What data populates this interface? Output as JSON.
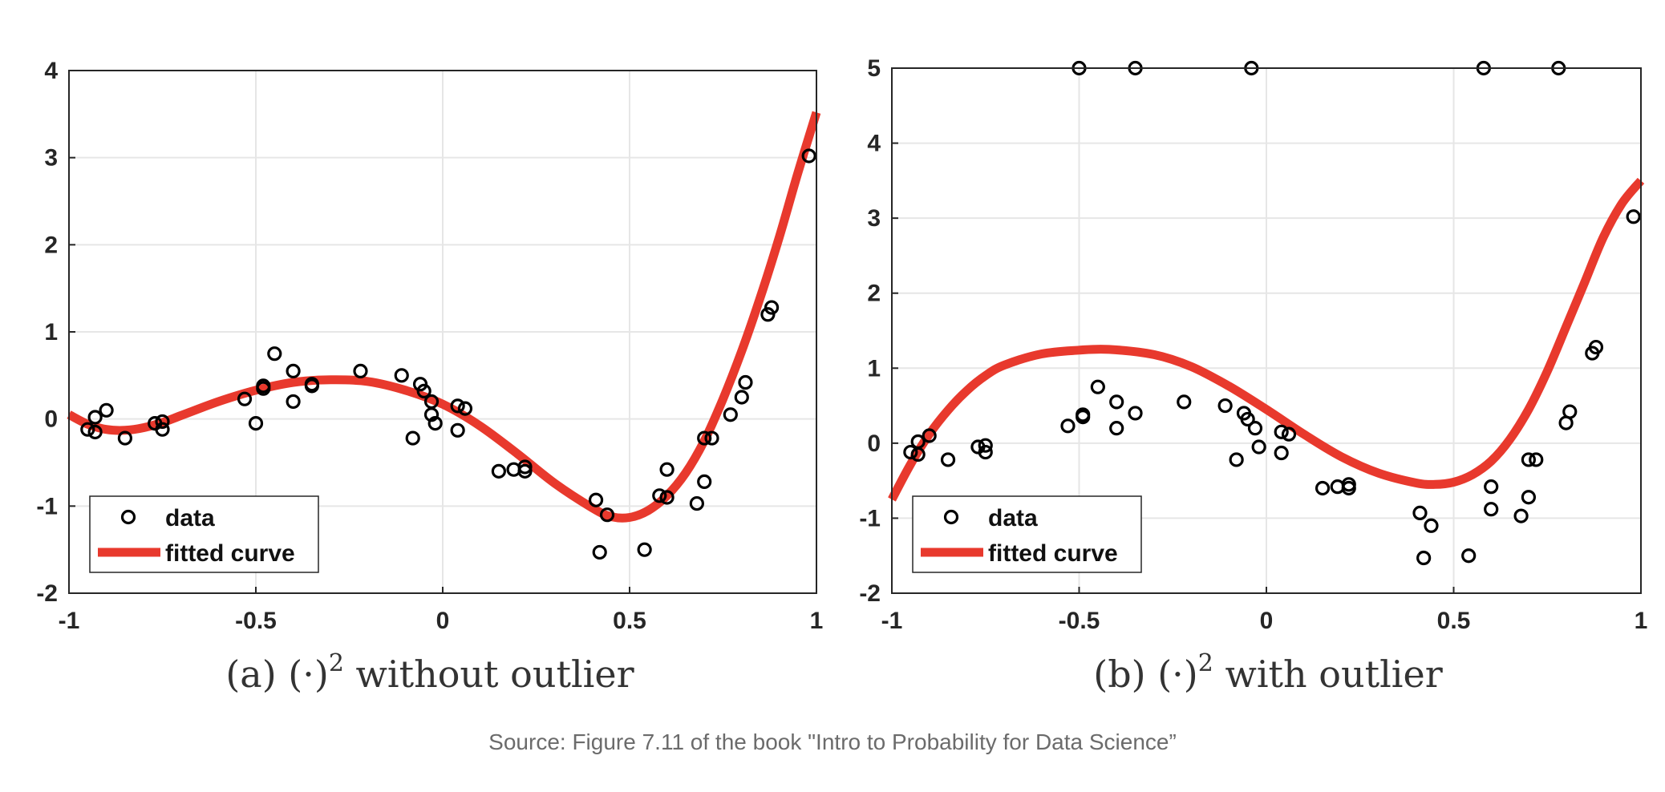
{
  "source_note": "Source: Figure 7.11 of the book \"Intro to Probability for Data Science”",
  "colors": {
    "curve": "#e8392d",
    "markers": "#000000",
    "grid": "#e6e6e6"
  },
  "chart_data": [
    {
      "type": "scatter",
      "caption": "(a) (·)² without outlier",
      "caption_prefix": "(a) (·)",
      "caption_sup": "2",
      "caption_suffix": " without outlier",
      "xlim": [
        -1,
        1
      ],
      "ylim": [
        -2,
        4
      ],
      "xticks": [
        -1,
        -0.5,
        0,
        0.5,
        1
      ],
      "xtick_labels": [
        "-1",
        "-0.5",
        "0",
        "0.5",
        "1"
      ],
      "yticks": [
        -2,
        -1,
        0,
        1,
        2,
        3,
        4
      ],
      "ytick_labels": [
        "-2",
        "-1",
        "0",
        "1",
        "2",
        "3",
        "4"
      ],
      "grid": true,
      "legend_position": "bottom-left",
      "legend": [
        "data",
        "fitted curve"
      ],
      "series": [
        {
          "name": "data",
          "kind": "points",
          "points": [
            [
              -0.95,
              -0.12
            ],
            [
              -0.93,
              -0.15
            ],
            [
              -0.93,
              0.02
            ],
            [
              -0.9,
              0.1
            ],
            [
              -0.85,
              -0.22
            ],
            [
              -0.77,
              -0.05
            ],
            [
              -0.75,
              -0.03
            ],
            [
              -0.75,
              -0.12
            ],
            [
              -0.53,
              0.23
            ],
            [
              -0.5,
              -0.05
            ],
            [
              -0.48,
              0.38
            ],
            [
              -0.48,
              0.35
            ],
            [
              -0.45,
              0.75
            ],
            [
              -0.4,
              0.55
            ],
            [
              -0.4,
              0.2
            ],
            [
              -0.35,
              0.4
            ],
            [
              -0.35,
              0.38
            ],
            [
              -0.22,
              0.55
            ],
            [
              -0.11,
              0.5
            ],
            [
              -0.08,
              -0.22
            ],
            [
              -0.06,
              0.4
            ],
            [
              -0.05,
              0.32
            ],
            [
              -0.03,
              0.2
            ],
            [
              -0.03,
              0.05
            ],
            [
              -0.02,
              -0.05
            ],
            [
              0.04,
              -0.13
            ],
            [
              0.04,
              0.15
            ],
            [
              0.06,
              0.12
            ],
            [
              0.15,
              -0.6
            ],
            [
              0.19,
              -0.58
            ],
            [
              0.22,
              -0.6
            ],
            [
              0.22,
              -0.55
            ],
            [
              0.41,
              -0.93
            ],
            [
              0.42,
              -1.53
            ],
            [
              0.44,
              -1.1
            ],
            [
              0.54,
              -1.5
            ],
            [
              0.58,
              -0.88
            ],
            [
              0.6,
              -0.9
            ],
            [
              0.6,
              -0.58
            ],
            [
              0.68,
              -0.97
            ],
            [
              0.7,
              -0.72
            ],
            [
              0.7,
              -0.22
            ],
            [
              0.72,
              -0.22
            ],
            [
              0.77,
              0.05
            ],
            [
              0.8,
              0.25
            ],
            [
              0.81,
              0.42
            ],
            [
              0.87,
              1.2
            ],
            [
              0.88,
              1.28
            ],
            [
              0.98,
              3.02
            ]
          ]
        },
        {
          "name": "fitted curve",
          "kind": "line",
          "points": [
            [
              -1.0,
              0.05
            ],
            [
              -0.95,
              -0.06
            ],
            [
              -0.9,
              -0.12
            ],
            [
              -0.85,
              -0.13
            ],
            [
              -0.8,
              -0.1
            ],
            [
              -0.75,
              -0.04
            ],
            [
              -0.7,
              0.04
            ],
            [
              -0.6,
              0.2
            ],
            [
              -0.5,
              0.33
            ],
            [
              -0.4,
              0.42
            ],
            [
              -0.3,
              0.45
            ],
            [
              -0.2,
              0.43
            ],
            [
              -0.1,
              0.33
            ],
            [
              0.0,
              0.17
            ],
            [
              0.1,
              -0.08
            ],
            [
              0.2,
              -0.4
            ],
            [
              0.3,
              -0.74
            ],
            [
              0.4,
              -1.02
            ],
            [
              0.45,
              -1.12
            ],
            [
              0.5,
              -1.13
            ],
            [
              0.55,
              -1.05
            ],
            [
              0.6,
              -0.88
            ],
            [
              0.65,
              -0.62
            ],
            [
              0.7,
              -0.25
            ],
            [
              0.75,
              0.23
            ],
            [
              0.8,
              0.78
            ],
            [
              0.85,
              1.4
            ],
            [
              0.9,
              2.08
            ],
            [
              0.95,
              2.82
            ],
            [
              1.0,
              3.52
            ]
          ]
        }
      ]
    },
    {
      "type": "scatter",
      "caption": "(b) (·)² with outlier",
      "caption_prefix": "(b) (·)",
      "caption_sup": "2",
      "caption_suffix": " with outlier",
      "xlim": [
        -1,
        1
      ],
      "ylim": [
        -2,
        5
      ],
      "xticks": [
        -1,
        -0.5,
        0,
        0.5,
        1
      ],
      "xtick_labels": [
        "-1",
        "-0.5",
        "0",
        "0.5",
        "1"
      ],
      "yticks": [
        -2,
        -1,
        0,
        1,
        2,
        3,
        4,
        5
      ],
      "ytick_labels": [
        "-2",
        "-1",
        "0",
        "1",
        "2",
        "3",
        "4",
        "5"
      ],
      "grid": true,
      "legend_position": "bottom-left",
      "legend": [
        "data",
        "fitted curve"
      ],
      "series": [
        {
          "name": "data",
          "kind": "points",
          "points": [
            [
              -0.5,
              5.0
            ],
            [
              -0.35,
              5.0
            ],
            [
              -0.04,
              5.0
            ],
            [
              0.58,
              5.0
            ],
            [
              0.78,
              5.0
            ],
            [
              -0.95,
              -0.12
            ],
            [
              -0.93,
              -0.15
            ],
            [
              -0.93,
              0.02
            ],
            [
              -0.9,
              0.1
            ],
            [
              -0.85,
              -0.22
            ],
            [
              -0.77,
              -0.05
            ],
            [
              -0.75,
              -0.03
            ],
            [
              -0.75,
              -0.12
            ],
            [
              -0.53,
              0.23
            ],
            [
              -0.49,
              0.38
            ],
            [
              -0.49,
              0.35
            ],
            [
              -0.45,
              0.75
            ],
            [
              -0.4,
              0.55
            ],
            [
              -0.4,
              0.2
            ],
            [
              -0.35,
              0.4
            ],
            [
              -0.22,
              0.55
            ],
            [
              -0.11,
              0.5
            ],
            [
              -0.08,
              -0.22
            ],
            [
              -0.06,
              0.4
            ],
            [
              -0.05,
              0.32
            ],
            [
              -0.03,
              0.2
            ],
            [
              -0.02,
              -0.05
            ],
            [
              0.04,
              -0.13
            ],
            [
              0.04,
              0.15
            ],
            [
              0.06,
              0.12
            ],
            [
              0.15,
              -0.6
            ],
            [
              0.19,
              -0.58
            ],
            [
              0.22,
              -0.6
            ],
            [
              0.22,
              -0.55
            ],
            [
              0.41,
              -0.93
            ],
            [
              0.42,
              -1.53
            ],
            [
              0.44,
              -1.1
            ],
            [
              0.54,
              -1.5
            ],
            [
              0.6,
              -0.88
            ],
            [
              0.6,
              -0.58
            ],
            [
              0.68,
              -0.97
            ],
            [
              0.7,
              -0.72
            ],
            [
              0.7,
              -0.22
            ],
            [
              0.72,
              -0.22
            ],
            [
              0.8,
              0.27
            ],
            [
              0.81,
              0.42
            ],
            [
              0.87,
              1.2
            ],
            [
              0.88,
              1.28
            ],
            [
              0.98,
              3.02
            ]
          ]
        },
        {
          "name": "fitted curve",
          "kind": "line",
          "points": [
            [
              -1.0,
              -0.75
            ],
            [
              -0.95,
              -0.28
            ],
            [
              -0.9,
              0.12
            ],
            [
              -0.85,
              0.44
            ],
            [
              -0.8,
              0.7
            ],
            [
              -0.75,
              0.9
            ],
            [
              -0.7,
              1.04
            ],
            [
              -0.6,
              1.19
            ],
            [
              -0.5,
              1.24
            ],
            [
              -0.42,
              1.25
            ],
            [
              -0.3,
              1.18
            ],
            [
              -0.2,
              1.02
            ],
            [
              -0.1,
              0.76
            ],
            [
              0.0,
              0.45
            ],
            [
              0.1,
              0.12
            ],
            [
              0.2,
              -0.18
            ],
            [
              0.3,
              -0.4
            ],
            [
              0.4,
              -0.53
            ],
            [
              0.45,
              -0.55
            ],
            [
              0.5,
              -0.52
            ],
            [
              0.55,
              -0.42
            ],
            [
              0.6,
              -0.24
            ],
            [
              0.65,
              0.05
            ],
            [
              0.7,
              0.45
            ],
            [
              0.75,
              0.96
            ],
            [
              0.8,
              1.55
            ],
            [
              0.85,
              2.15
            ],
            [
              0.9,
              2.75
            ],
            [
              0.95,
              3.2
            ],
            [
              1.0,
              3.5
            ]
          ]
        }
      ]
    }
  ]
}
